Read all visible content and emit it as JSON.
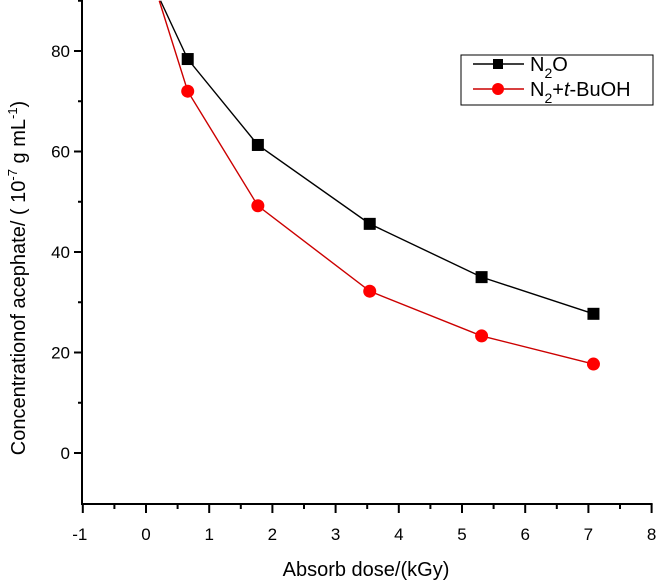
{
  "chart_data": {
    "type": "line",
    "title": "",
    "xlabel": "Absorb dose/(kGy)",
    "ylabel": "Concentrationof acephate/ (  10",
    "ylabel_parts": {
      "prefix": "Concentrationof acephate/ (  10",
      "exp1": "-7",
      "middle": " g mL",
      "exp2": "-1",
      "suffix": ")"
    },
    "xlim": [
      -1,
      8
    ],
    "ylim": [
      -10,
      90
    ],
    "x_ticks": [
      -1,
      0,
      1,
      2,
      3,
      4,
      5,
      6,
      7,
      8
    ],
    "y_ticks": [
      0,
      20,
      40,
      60,
      80
    ],
    "grid": false,
    "legend_position": "upper right",
    "series": [
      {
        "name": "N2O",
        "label_main": "N",
        "label_sub": "2",
        "label_rest": "O",
        "color": "#000000",
        "marker": "square",
        "x": [
          0.66,
          1.77,
          3.54,
          5.31,
          7.08
        ],
        "values": [
          78.4,
          61.3,
          45.6,
          35.0,
          27.7
        ],
        "line_start": [
          0.23,
          90
        ]
      },
      {
        "name": "N2+t-BuOH",
        "label_main": "N",
        "label_sub": "2",
        "label_plus": "+",
        "label_italic": "t",
        "label_rest": "-BuOH",
        "color": "#ff0000",
        "line_color": "#cc0000",
        "marker": "circle",
        "x": [
          0.66,
          1.77,
          3.54,
          5.31,
          7.08
        ],
        "values": [
          72.0,
          49.2,
          32.2,
          23.3,
          17.7
        ],
        "line_start": [
          0.21,
          90
        ]
      }
    ]
  }
}
